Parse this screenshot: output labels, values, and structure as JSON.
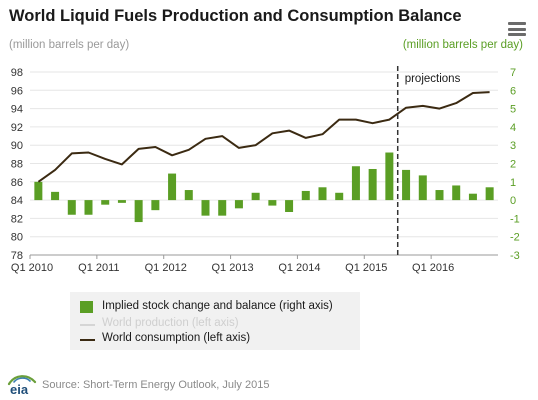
{
  "header": {
    "title": "World Liquid Fuels Production and Consumption Balance",
    "unit_left": "(million barrels per day)",
    "unit_right": "(million barrels per day)",
    "menu_icon": "hamburger-menu-icon"
  },
  "chart_data": {
    "type": "bar",
    "title": "World Liquid Fuels Production and Consumption Balance",
    "quarters": [
      "Q1 2010",
      "Q2 2010",
      "Q3 2010",
      "Q4 2010",
      "Q1 2011",
      "Q2 2011",
      "Q3 2011",
      "Q4 2011",
      "Q1 2012",
      "Q2 2012",
      "Q3 2012",
      "Q4 2012",
      "Q1 2013",
      "Q2 2013",
      "Q3 2013",
      "Q4 2013",
      "Q1 2014",
      "Q2 2014",
      "Q3 2014",
      "Q4 2014",
      "Q1 2015",
      "Q2 2015",
      "Q3 2015",
      "Q4 2015",
      "Q1 2016",
      "Q2 2016",
      "Q3 2016",
      "Q4 2016"
    ],
    "x_tick_labels": [
      "Q1 2010",
      "Q1 2011",
      "Q1 2012",
      "Q1 2013",
      "Q1 2014",
      "Q1 2015",
      "Q1 2016"
    ],
    "left_axis": {
      "min": 78,
      "max": 98,
      "ticks": [
        78,
        80,
        82,
        84,
        86,
        88,
        90,
        92,
        94,
        96,
        98
      ]
    },
    "right_axis": {
      "min": -3,
      "max": 7,
      "ticks": [
        -3,
        -2,
        -1,
        0,
        1,
        2,
        3,
        4,
        5,
        6,
        7
      ]
    },
    "series": [
      {
        "name": "Implied stock change and balance (right axis)",
        "type": "bar",
        "axis": "right",
        "color": "#5a9e24",
        "values": [
          1.0,
          0.45,
          -0.8,
          -0.8,
          -0.25,
          -0.15,
          -1.2,
          -0.55,
          1.45,
          0.55,
          -0.85,
          -0.85,
          -0.45,
          0.4,
          -0.3,
          -0.65,
          0.5,
          0.7,
          0.4,
          1.85,
          1.7,
          2.6,
          1.65,
          1.35,
          0.55,
          0.8,
          0.35,
          0.7
        ]
      },
      {
        "name": "World production (left axis)",
        "type": "line",
        "axis": "left",
        "color": "#d5d5d5",
        "values": []
      },
      {
        "name": "World consumption (left axis)",
        "type": "line",
        "axis": "left",
        "color": "#3b2a12",
        "values": [
          86.0,
          87.3,
          89.1,
          89.2,
          88.5,
          87.9,
          89.6,
          89.8,
          88.9,
          89.5,
          90.7,
          91.0,
          89.7,
          90.0,
          91.3,
          91.6,
          90.8,
          91.2,
          92.8,
          92.8,
          92.4,
          92.8,
          94.1,
          94.3,
          94.0,
          94.6,
          95.7,
          95.8
        ]
      }
    ],
    "projection_start_quarter": "Q3 2015",
    "annotation": "projections",
    "grid": true,
    "legend_position": "bottom-left"
  },
  "legend": {
    "items": [
      {
        "label": "Implied stock change and balance (right axis)"
      },
      {
        "label": "World production (left axis)"
      },
      {
        "label": "World consumption (left axis)"
      }
    ]
  },
  "footer": {
    "logo_text": "eia",
    "source": "Source: Short-Term Energy Outlook, July 2015"
  }
}
